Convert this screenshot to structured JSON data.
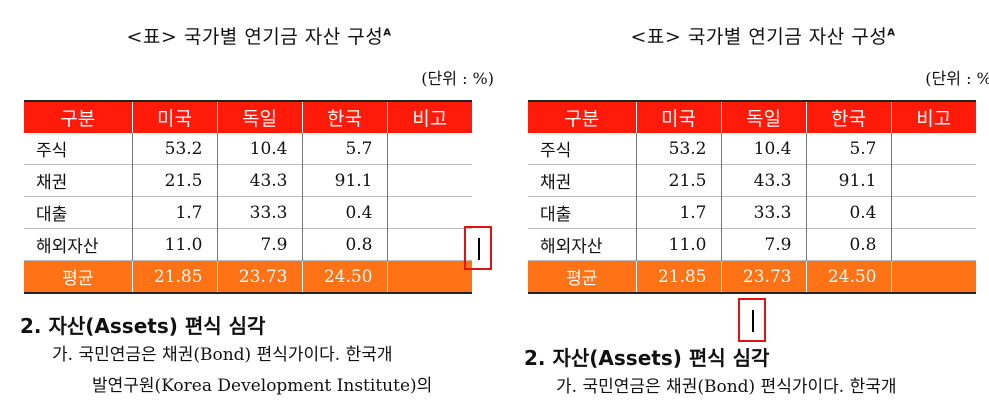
{
  "left": {
    "title": "<표> 국가별 연기금 자산 구성",
    "title_sup": "A",
    "unit": "(단위 : %)",
    "table": {
      "headers": [
        "구분",
        "미국",
        "독일",
        "한국",
        "비고"
      ],
      "rows": [
        [
          "주식",
          "53.2",
          "10.4",
          "5.7",
          ""
        ],
        [
          "채권",
          "21.5",
          "43.3",
          "91.1",
          ""
        ],
        [
          "대출",
          "1.7",
          "33.3",
          "0.4",
          ""
        ],
        [
          "해외자산",
          "11.0",
          "7.9",
          "0.8",
          ""
        ]
      ],
      "footer": [
        "평균",
        "21.85",
        "23.73",
        "24.50",
        ""
      ]
    },
    "heading": "2. 자산(Assets) 편식 심각",
    "para_line1": "가. 국민연금은 채권(Bond) 편식가이다. 한국개",
    "para_line2": "발연구원(Korea Development Institute)의"
  },
  "right": {
    "title": "<표> 국가별 연기금 자산 구성",
    "title_sup": "A",
    "unit": "(단위 : %)",
    "table": {
      "headers": [
        "구분",
        "미국",
        "독일",
        "한국",
        "비고"
      ],
      "rows": [
        [
          "주식",
          "53.2",
          "10.4",
          "5.7",
          ""
        ],
        [
          "채권",
          "21.5",
          "43.3",
          "91.1",
          ""
        ],
        [
          "대출",
          "1.7",
          "33.3",
          "0.4",
          ""
        ],
        [
          "해외자산",
          "11.0",
          "7.9",
          "0.8",
          ""
        ]
      ],
      "footer": [
        "평균",
        "21.85",
        "23.73",
        "24.50",
        ""
      ]
    },
    "heading": "2. 자산(Assets) 편식 심각",
    "para_line1": "가. 국민연금은 채권(Bond) 편식가이다. 한국개"
  },
  "colors": {
    "header_red": "#ff1a0a",
    "footer_orange": "#ff7316",
    "highlight_box": "#e01414"
  }
}
